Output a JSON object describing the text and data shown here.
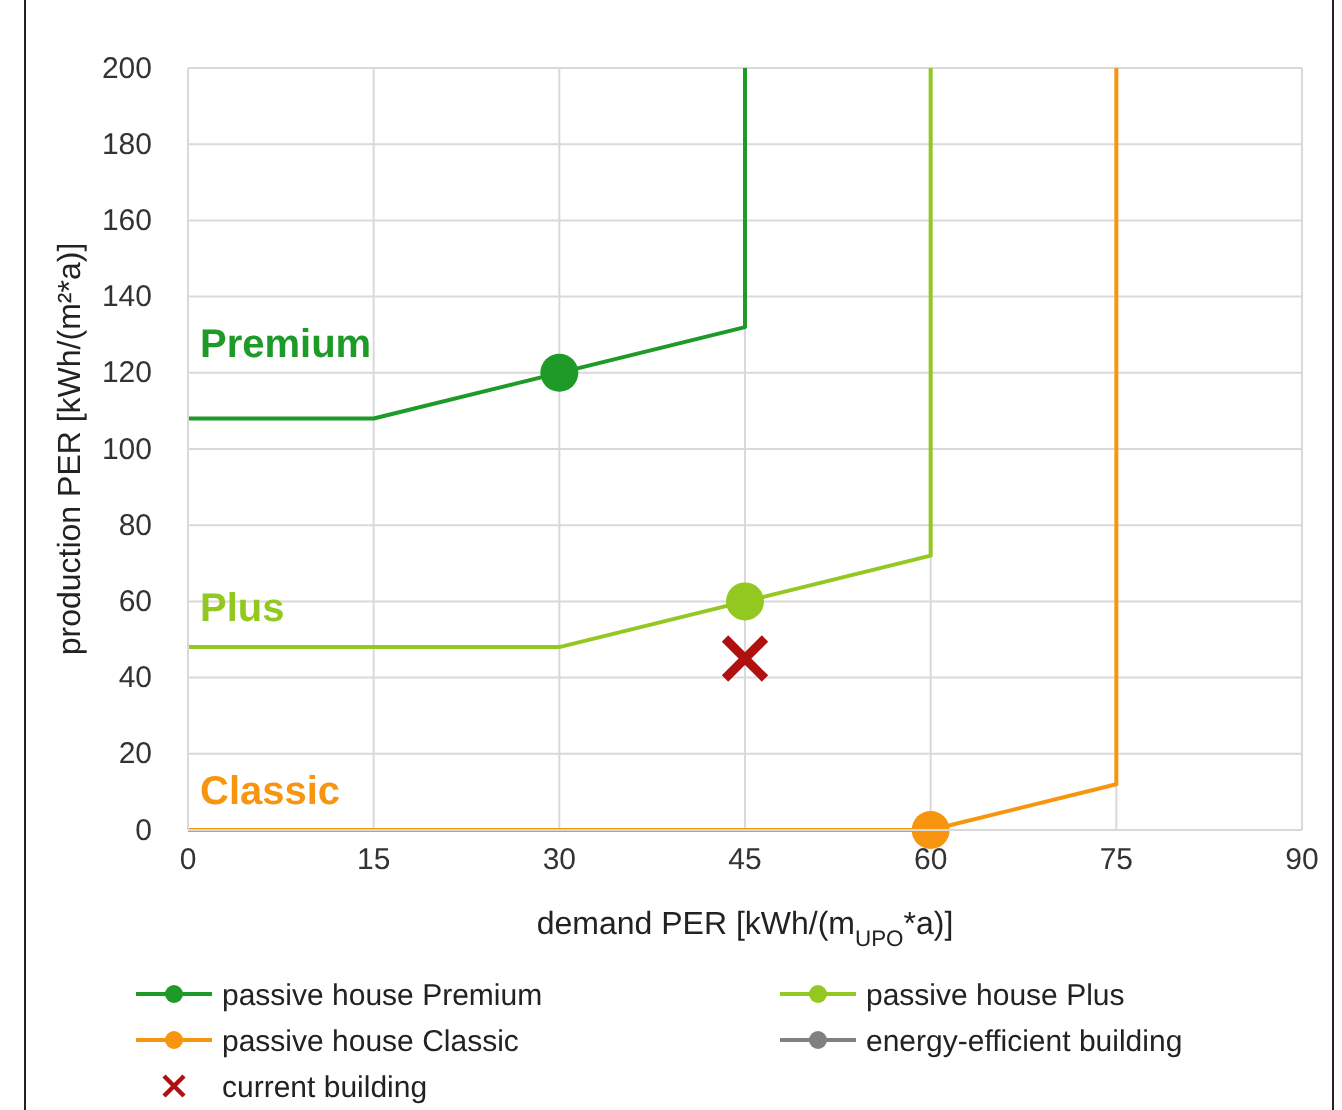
{
  "chart_data": {
    "type": "line",
    "xlabel": "demand PER [kWh/(m$_{UPO}$*a)]",
    "ylabel": "production PER [kWh/(m²*a)]",
    "xlim": [
      0,
      90
    ],
    "xticks": [
      0,
      15,
      30,
      45,
      60,
      75,
      90
    ],
    "ylim": [
      0,
      200
    ],
    "yticks": [
      0,
      20,
      40,
      60,
      80,
      100,
      120,
      140,
      160,
      180,
      200
    ],
    "grid": true,
    "legend": "bottom",
    "marker": "none",
    "series": [
      {
        "name": "passive house Premium",
        "color": "#1e9a28",
        "x": [
          0,
          15,
          45,
          45
        ],
        "values": [
          108,
          108,
          132,
          200
        ]
      },
      {
        "name": "passive house Plus",
        "color": "#92c820",
        "x": [
          0,
          30,
          60,
          60
        ],
        "values": [
          48,
          48,
          72,
          200
        ]
      },
      {
        "name": "passive house Classic",
        "color": "#f7960e",
        "x": [
          0,
          60,
          75,
          75
        ],
        "values": [
          0,
          0,
          12,
          200
        ]
      },
      {
        "name": "energy-efficient building",
        "color": "#808080"
      },
      {
        "type": "scatter",
        "color": "#1e9a28",
        "marker": "circle",
        "x": [
          30
        ],
        "values": [
          120
        ]
      },
      {
        "type": "scatter",
        "color": "#92c820",
        "marker": "circle",
        "x": [
          45
        ],
        "values": [
          60
        ]
      },
      {
        "type": "scatter",
        "color": "#f7960e",
        "marker": "circle",
        "x": [
          60
        ],
        "values": [
          0
        ]
      },
      {
        "type": "scatter",
        "name": "current building",
        "color": "#b01010",
        "marker": "cross",
        "x": [
          45
        ],
        "values": [
          45
        ]
      }
    ],
    "annotations": [
      "Premium",
      "Plus",
      "Classic"
    ]
  }
}
